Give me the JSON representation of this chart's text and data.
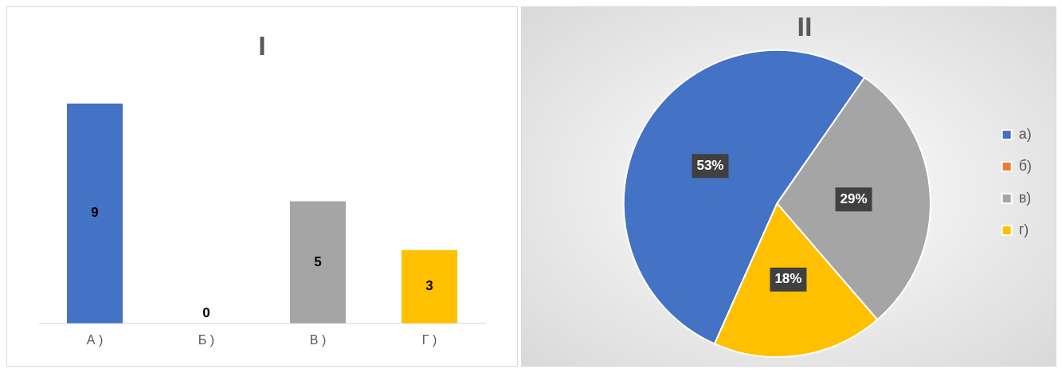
{
  "chart_data": [
    {
      "type": "bar",
      "title": "I",
      "categories": [
        "А )",
        "Б )",
        "В )",
        "Г )"
      ],
      "values": [
        9,
        0,
        5,
        3
      ],
      "colors": [
        "#4472c4",
        "#c55a11",
        "#a5a5a5",
        "#ffc000"
      ],
      "data_labels": true,
      "grid": false,
      "legend": false
    },
    {
      "type": "pie",
      "title": "II",
      "categories": [
        "а)",
        "б)",
        "в)",
        "г)"
      ],
      "values": [
        53,
        0,
        29,
        18
      ],
      "colors": [
        "#4472c4",
        "#ed7d31",
        "#a5a5a5",
        "#ffc000"
      ],
      "value_labels": [
        "53%",
        null,
        "29%",
        "18%"
      ],
      "legend": "right"
    }
  ]
}
